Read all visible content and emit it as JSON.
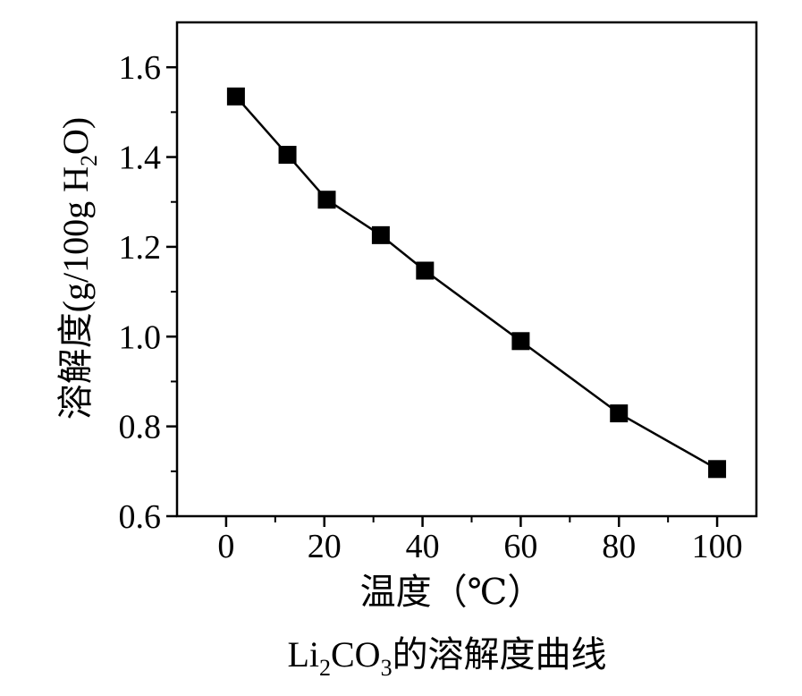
{
  "chart_data": {
    "type": "line",
    "title": "Li₂CO₃的溶解度曲线",
    "title_parts": {
      "pre": "Li",
      "sub1": "2",
      "mid": "CO",
      "sub2": "3",
      "post": "的溶解度曲线"
    },
    "xlabel": "温度（℃）",
    "ylabel": "溶解度(g/100g H₂O)",
    "ylabel_parts": {
      "pre": "溶解度(g/100g H",
      "sub": "2",
      "post": "O)"
    },
    "xlim": [
      -10,
      108
    ],
    "ylim": [
      0.6,
      1.7
    ],
    "xticks": [
      0,
      20,
      40,
      60,
      80,
      100
    ],
    "xtick_labels": [
      "0",
      "20",
      "40",
      "60",
      "80",
      "100"
    ],
    "yticks": [
      0.6,
      0.8,
      1.0,
      1.2,
      1.4,
      1.6
    ],
    "ytick_labels": [
      "0.6",
      "0.8",
      "1.0",
      "1.2",
      "1.4",
      "1.6"
    ],
    "grid": false,
    "marker": "square",
    "color": "#000000",
    "series": [
      {
        "x": [
          2,
          12.5,
          20.5,
          31.5,
          40.5,
          60,
          80,
          100
        ],
        "y": [
          1.535,
          1.405,
          1.305,
          1.226,
          1.147,
          0.99,
          0.829,
          0.705
        ]
      }
    ]
  }
}
